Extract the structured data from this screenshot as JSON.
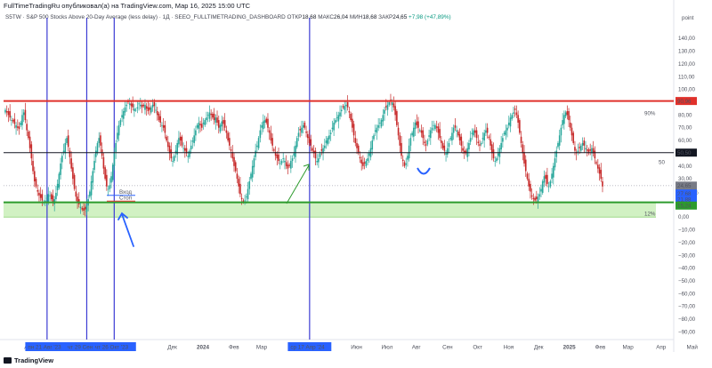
{
  "header": {
    "published_by": "FullTimeTradingRu опубликовал(а) на TradingView.com, Мар 16, 2025 15:00 UTC",
    "symbol_line": "S5TW · S&P 500 Stocks Above 20-Day Average (less delay) · 1Д · SEEO_FULLTIMETRADING_DASHBOARD",
    "ohlc": {
      "open_label": "ОТКР",
      "open": "18,68",
      "high_label": "МАКС",
      "high": "26,04",
      "low_label": "МИН",
      "low": "18,68",
      "close_label": "ЗАКР",
      "close": "24,65",
      "change": "+7,98 (+47,89%)"
    }
  },
  "footer": {
    "brand": "TradingView"
  },
  "annotations": {
    "level_90_label": "90%",
    "level_50_label": "50",
    "level_12_label": "12%",
    "entry_label": "Вход",
    "stop_label": "Стоп"
  },
  "chart_data": {
    "type": "candlestick",
    "axis_unit_label": "point",
    "y_ticks": [
      140,
      130,
      120,
      110,
      100,
      90,
      80,
      70,
      60,
      50,
      40,
      30,
      20,
      10,
      0,
      -10,
      -20,
      -30,
      -40,
      -50,
      -60,
      -70,
      -80,
      -90
    ],
    "y_tick_labels": [
      "140,00",
      "130,00",
      "120,00",
      "110,00",
      "100,00",
      "90,00",
      "80,00",
      "70,00",
      "60,00",
      "50,00",
      "40,00",
      "30,00",
      "20,00",
      "10,00",
      "0,00",
      "−10,00",
      "−20,00",
      "−30,00",
      "−40,00",
      "−50,00",
      "−60,00",
      "−70,00",
      "−80,00",
      "−90,00"
    ],
    "ylim": [
      -96,
      152
    ],
    "x_labels": [
      {
        "label": "Авг",
        "pos": 0.3
      },
      {
        "label": "пн 21 Авг '23",
        "pos": 0.9,
        "highlight": true
      },
      {
        "label": "чт 29 Сен '23",
        "pos": 2.2,
        "highlight": true
      },
      {
        "label": "чт 26 Окт '23",
        "pos": 3.1,
        "highlight": true
      },
      {
        "label": "Дек",
        "pos": 5.0
      },
      {
        "label": "2024",
        "pos": 6.0,
        "bold": true
      },
      {
        "label": "Фев",
        "pos": 7.0
      },
      {
        "label": "Мар",
        "pos": 7.9
      },
      {
        "label": "ср 17 Апр '24",
        "pos": 9.5,
        "highlight": true
      },
      {
        "label": "Июн",
        "pos": 11.0
      },
      {
        "label": "Июл",
        "pos": 12.0
      },
      {
        "label": "Авг",
        "pos": 13.0
      },
      {
        "label": "Сен",
        "pos": 14.0
      },
      {
        "label": "Окт",
        "pos": 15.0
      },
      {
        "label": "Ноя",
        "pos": 16.0
      },
      {
        "label": "Дек",
        "pos": 17.0
      },
      {
        "label": "2025",
        "pos": 18.0,
        "bold": true
      },
      {
        "label": "Фев",
        "pos": 19.0
      },
      {
        "label": "Мар",
        "pos": 19.9
      },
      {
        "label": "Апр",
        "pos": 21.0
      },
      {
        "label": "Май",
        "pos": 22.0
      }
    ],
    "horizontal_levels": [
      {
        "name": "upper",
        "value": 90.96,
        "label": "90,96",
        "color": "#e0312b"
      },
      {
        "name": "mid",
        "value": 50.5,
        "label": "50,50",
        "color": "#131722"
      },
      {
        "name": "lower",
        "value": 11.55,
        "label": "11,55",
        "color": "#2d9b2d"
      }
    ],
    "zone": {
      "from": 11.55,
      "to": 0.0,
      "color": "#c9eeb8"
    },
    "price_badges": [
      {
        "label": "24,65",
        "sub": "+47,89%",
        "value": 24.65,
        "color": "#787b86"
      },
      {
        "label": "27,68",
        "value": 18.5,
        "color": "#2962ff"
      },
      {
        "label": "21,88",
        "value": 13.9,
        "color": "#2962ff"
      },
      {
        "label": "15,24",
        "value": 9.0,
        "color": "#2d9b2d"
      }
    ],
    "vertical_markers": [
      "пн 21 Авг '23",
      "чт 29 Сен '23",
      "чт 26 Окт '23",
      "ср 17 Апр '24"
    ],
    "closes": [
      84,
      82,
      80,
      78,
      76,
      75,
      73,
      72,
      70,
      69,
      74,
      80,
      82,
      76,
      68,
      62,
      54,
      46,
      36,
      28,
      24,
      20,
      17,
      15,
      13,
      12,
      13,
      15,
      18,
      17,
      14,
      12,
      14,
      19,
      26,
      34,
      42,
      48,
      52,
      58,
      62,
      55,
      47,
      38,
      30,
      22,
      16,
      12,
      10,
      8,
      6,
      5,
      6,
      9,
      14,
      20,
      28,
      36,
      44,
      52,
      58,
      62,
      56,
      48,
      38,
      30,
      24,
      22,
      25,
      32,
      41,
      50,
      58,
      66,
      72,
      76,
      80,
      83,
      86,
      88,
      90,
      89,
      87,
      86,
      85,
      84,
      86,
      89,
      88,
      86,
      87,
      88,
      85,
      83,
      84,
      86,
      88,
      87,
      84,
      80,
      76,
      74,
      72,
      70,
      66,
      60,
      55,
      50,
      46,
      44,
      48,
      52,
      58,
      62,
      60,
      56,
      54,
      52,
      50,
      48,
      52,
      56,
      60,
      64,
      68,
      72,
      74,
      72,
      70,
      74,
      76,
      78,
      80,
      82,
      80,
      78,
      76,
      78,
      74,
      70,
      72,
      75,
      73,
      70,
      66,
      60,
      56,
      52,
      46,
      40,
      36,
      30,
      24,
      18,
      14,
      12,
      13,
      16,
      22,
      28,
      34,
      40,
      46,
      52,
      56,
      62,
      68,
      72,
      75,
      76,
      74,
      70,
      66,
      60,
      56,
      52,
      48,
      46,
      44,
      42,
      44,
      46,
      44,
      40,
      38,
      40,
      44,
      46,
      50,
      56,
      62,
      66,
      68,
      70,
      72,
      70,
      66,
      62,
      58,
      56,
      52,
      50,
      46,
      44,
      46,
      50,
      52,
      54,
      56,
      60,
      62,
      64,
      66,
      70,
      74,
      76,
      78,
      80,
      82,
      84,
      86,
      87,
      88,
      86,
      82,
      76,
      70,
      64,
      58,
      54,
      50,
      46,
      42,
      40,
      42,
      44,
      46,
      50,
      54,
      60,
      64,
      68,
      70,
      72,
      74,
      76,
      80,
      84,
      86,
      88,
      90,
      91,
      90,
      86,
      80,
      72,
      64,
      56,
      48,
      44,
      40,
      42,
      48,
      56,
      62,
      66,
      70,
      74,
      72,
      70,
      68,
      66,
      62,
      58,
      56,
      60,
      64,
      68,
      70,
      72,
      72,
      70,
      66,
      62,
      58,
      54,
      52,
      50,
      54,
      58,
      62,
      66,
      70,
      70,
      68,
      64,
      60,
      56,
      52,
      50,
      50,
      54,
      58,
      62,
      66,
      68,
      66,
      62,
      58,
      56,
      58,
      62,
      66,
      68,
      66,
      62,
      56,
      50,
      46,
      44,
      46,
      50,
      54,
      58,
      62,
      66,
      68,
      70,
      74,
      78,
      80,
      82,
      84,
      80,
      74,
      66,
      58,
      50,
      42,
      36,
      30,
      24,
      20,
      16,
      14,
      13,
      14,
      16,
      18,
      22,
      28,
      32,
      30,
      26,
      24,
      28,
      34,
      40,
      46,
      52,
      58,
      64,
      70,
      76,
      80,
      82,
      80,
      76,
      70,
      64,
      58,
      52,
      50,
      52,
      54,
      56,
      58,
      56,
      54,
      52,
      50,
      52,
      54,
      50,
      46,
      42,
      38,
      34,
      30,
      24
    ]
  }
}
